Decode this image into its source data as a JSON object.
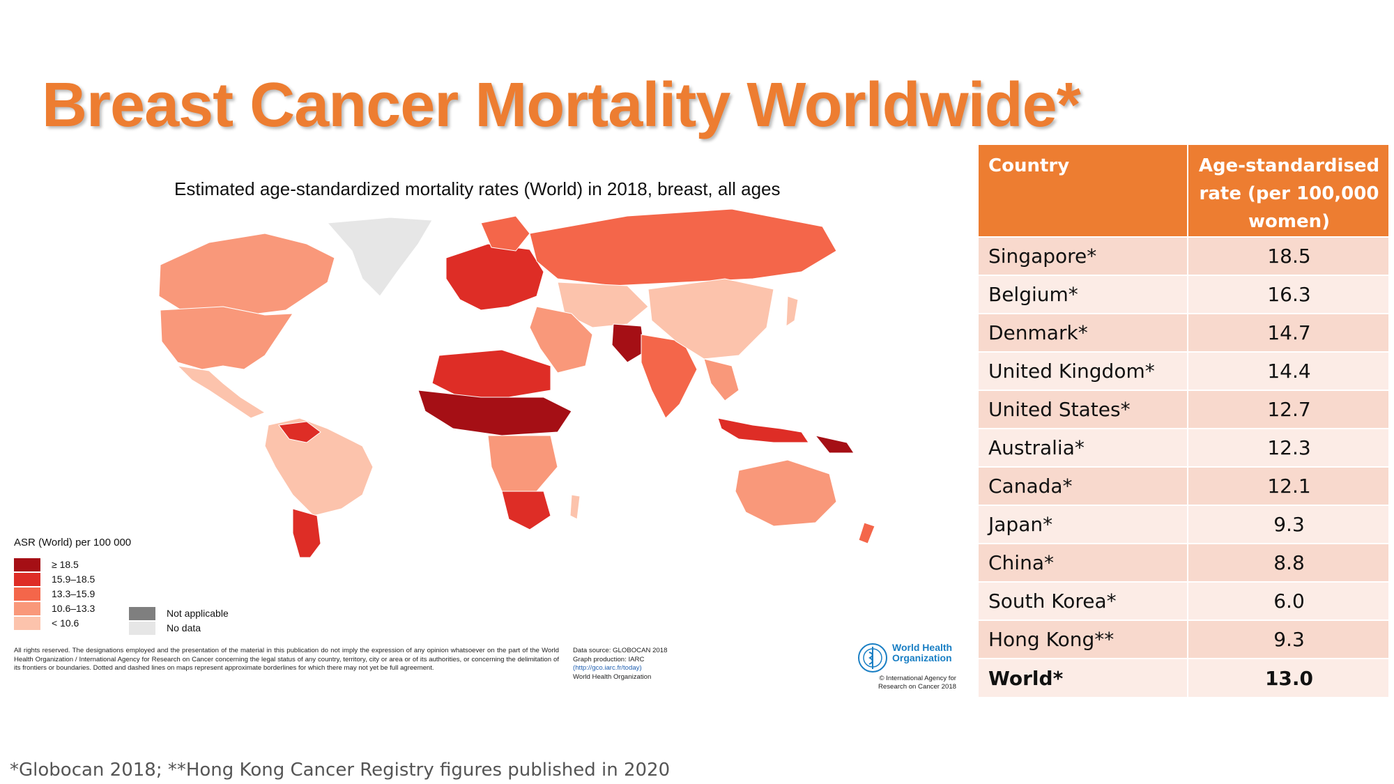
{
  "slide": {
    "title": "Breast Cancer Mortality Worldwide*",
    "footnote": "*Globocan 2018; **Hong Kong Cancer Registry figures published in 2020"
  },
  "map": {
    "title": "Estimated age-standardized mortality rates (World) in 2018, breast, all ages",
    "legend": {
      "title": "ASR (World) per 100 000",
      "classes": [
        {
          "label": "≥ 18.5",
          "color": "#A50F15"
        },
        {
          "label": "15.9–18.5",
          "color": "#DE2D26"
        },
        {
          "label": "13.3–15.9",
          "color": "#F4664A"
        },
        {
          "label": "10.6–13.3",
          "color": "#F9987A"
        },
        {
          "label": "< 10.6",
          "color": "#FCC3AC"
        }
      ],
      "extra": [
        {
          "label": "Not applicable",
          "color": "#7F7F7F"
        },
        {
          "label": "No data",
          "color": "#E6E6E6"
        }
      ]
    },
    "disclaimer": "All rights reserved. The designations employed and the presentation of the material in this publication do not imply the expression of any opinion whatsoever on the part of the World Health Organization / International Agency for Research on Cancer concerning the legal status of any country, territory, city or area or of its authorities, or concerning the delimitation of its frontiers or boundaries. Dotted and dashed lines on maps represent approximate borderlines for which there may not yet be full agreement.",
    "source": {
      "line1": "Data source: GLOBOCAN 2018",
      "line2": "Graph production: IARC",
      "link": "(http://gco.iarc.fr/today)",
      "line4": "World Health Organization"
    },
    "who": {
      "name_line1": "World Health",
      "name_line2": "Organization",
      "credit_line1": "© International Agency for",
      "credit_line2": "Research on Cancer 2018"
    }
  },
  "table": {
    "headers": {
      "country": "Country",
      "rate_line1": "Age-standardised",
      "rate_line2": "rate (per 100,000",
      "rate_line3": "women)"
    },
    "rows": [
      {
        "country": "Singapore*",
        "rate": "18.5"
      },
      {
        "country": "Belgium*",
        "rate": "16.3"
      },
      {
        "country": "Denmark*",
        "rate": "14.7"
      },
      {
        "country": "United Kingdom*",
        "rate": "14.4"
      },
      {
        "country": "United States*",
        "rate": "12.7"
      },
      {
        "country": "Australia*",
        "rate": "12.3"
      },
      {
        "country": "Canada*",
        "rate": "12.1"
      },
      {
        "country": "Japan*",
        "rate": "9.3"
      },
      {
        "country": "China*",
        "rate": "8.8"
      },
      {
        "country": "South Korea*",
        "rate": "6.0"
      },
      {
        "country": "Hong Kong**",
        "rate": "9.3"
      },
      {
        "country": "World*",
        "rate": "13.0"
      }
    ]
  }
}
